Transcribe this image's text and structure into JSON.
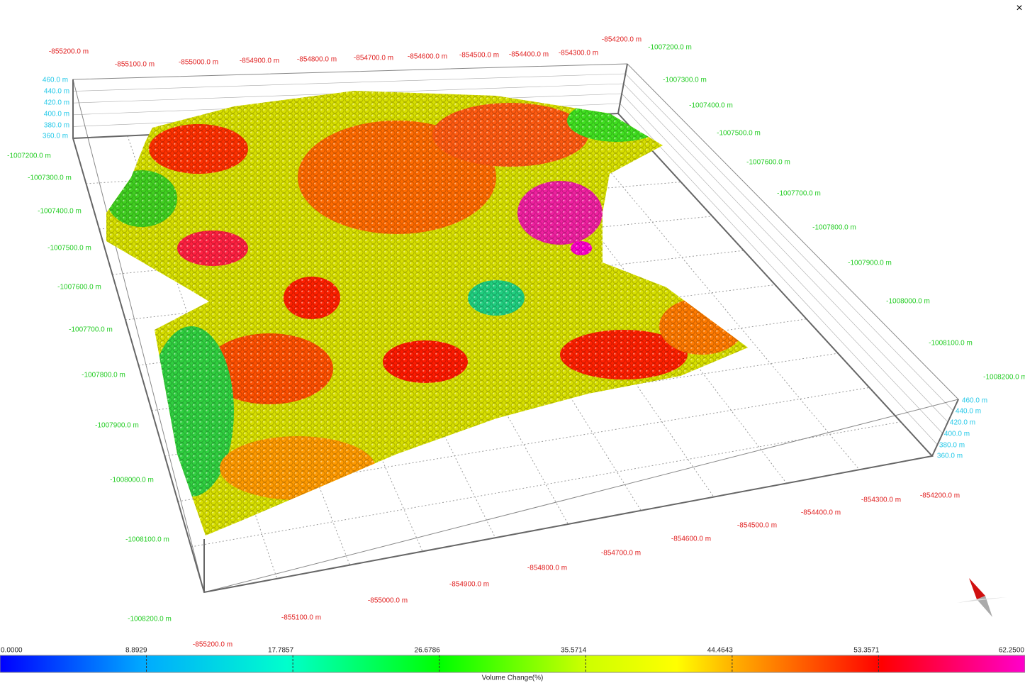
{
  "window": {
    "close": "×"
  },
  "axes": {
    "x_top": [
      "-855200.0 m",
      "-855100.0 m",
      "-855000.0 m",
      "-854900.0 m",
      "-854800.0 m",
      "-854700.0 m",
      "-854600.0 m",
      "-854500.0 m",
      "-854400.0 m",
      "-854300.0 m",
      "-854200.0 m"
    ],
    "x_bottom": [
      "-855200.0 m",
      "-855100.0 m",
      "-855000.0 m",
      "-854900.0 m",
      "-854800.0 m",
      "-854700.0 m",
      "-854600.0 m",
      "-854500.0 m",
      "-854400.0 m",
      "-854300.0 m",
      "-854200.0 m"
    ],
    "y_left": [
      "-1007200.0 m",
      "-1007300.0 m",
      "-1007400.0 m",
      "-1007500.0 m",
      "-1007600.0 m",
      "-1007700.0 m",
      "-1007800.0 m",
      "-1007900.0 m",
      "-1008000.0 m",
      "-1008100.0 m",
      "-1008200.0 m"
    ],
    "y_right": [
      "-1007200.0 m",
      "-1007300.0 m",
      "-1007400.0 m",
      "-1007500.0 m",
      "-1007600.0 m",
      "-1007700.0 m",
      "-1007800.0 m",
      "-1007900.0 m",
      "-1008000.0 m",
      "-1008100.0 m",
      "-1008200.0 m"
    ],
    "z_left": [
      "460.0 m",
      "440.0 m",
      "420.0 m",
      "400.0 m",
      "380.0 m",
      "360.0 m"
    ],
    "z_right": [
      "460.0 m",
      "440.0 m",
      "420.0 m",
      "400.0 m",
      "380.0 m",
      "360.0 m"
    ]
  },
  "colorbar": {
    "title": "Volume Change(%)",
    "ticks": [
      "0.0000",
      "8.8929",
      "17.7857",
      "26.6786",
      "35.5714",
      "44.4643",
      "53.3571",
      "62.2500"
    ]
  }
}
